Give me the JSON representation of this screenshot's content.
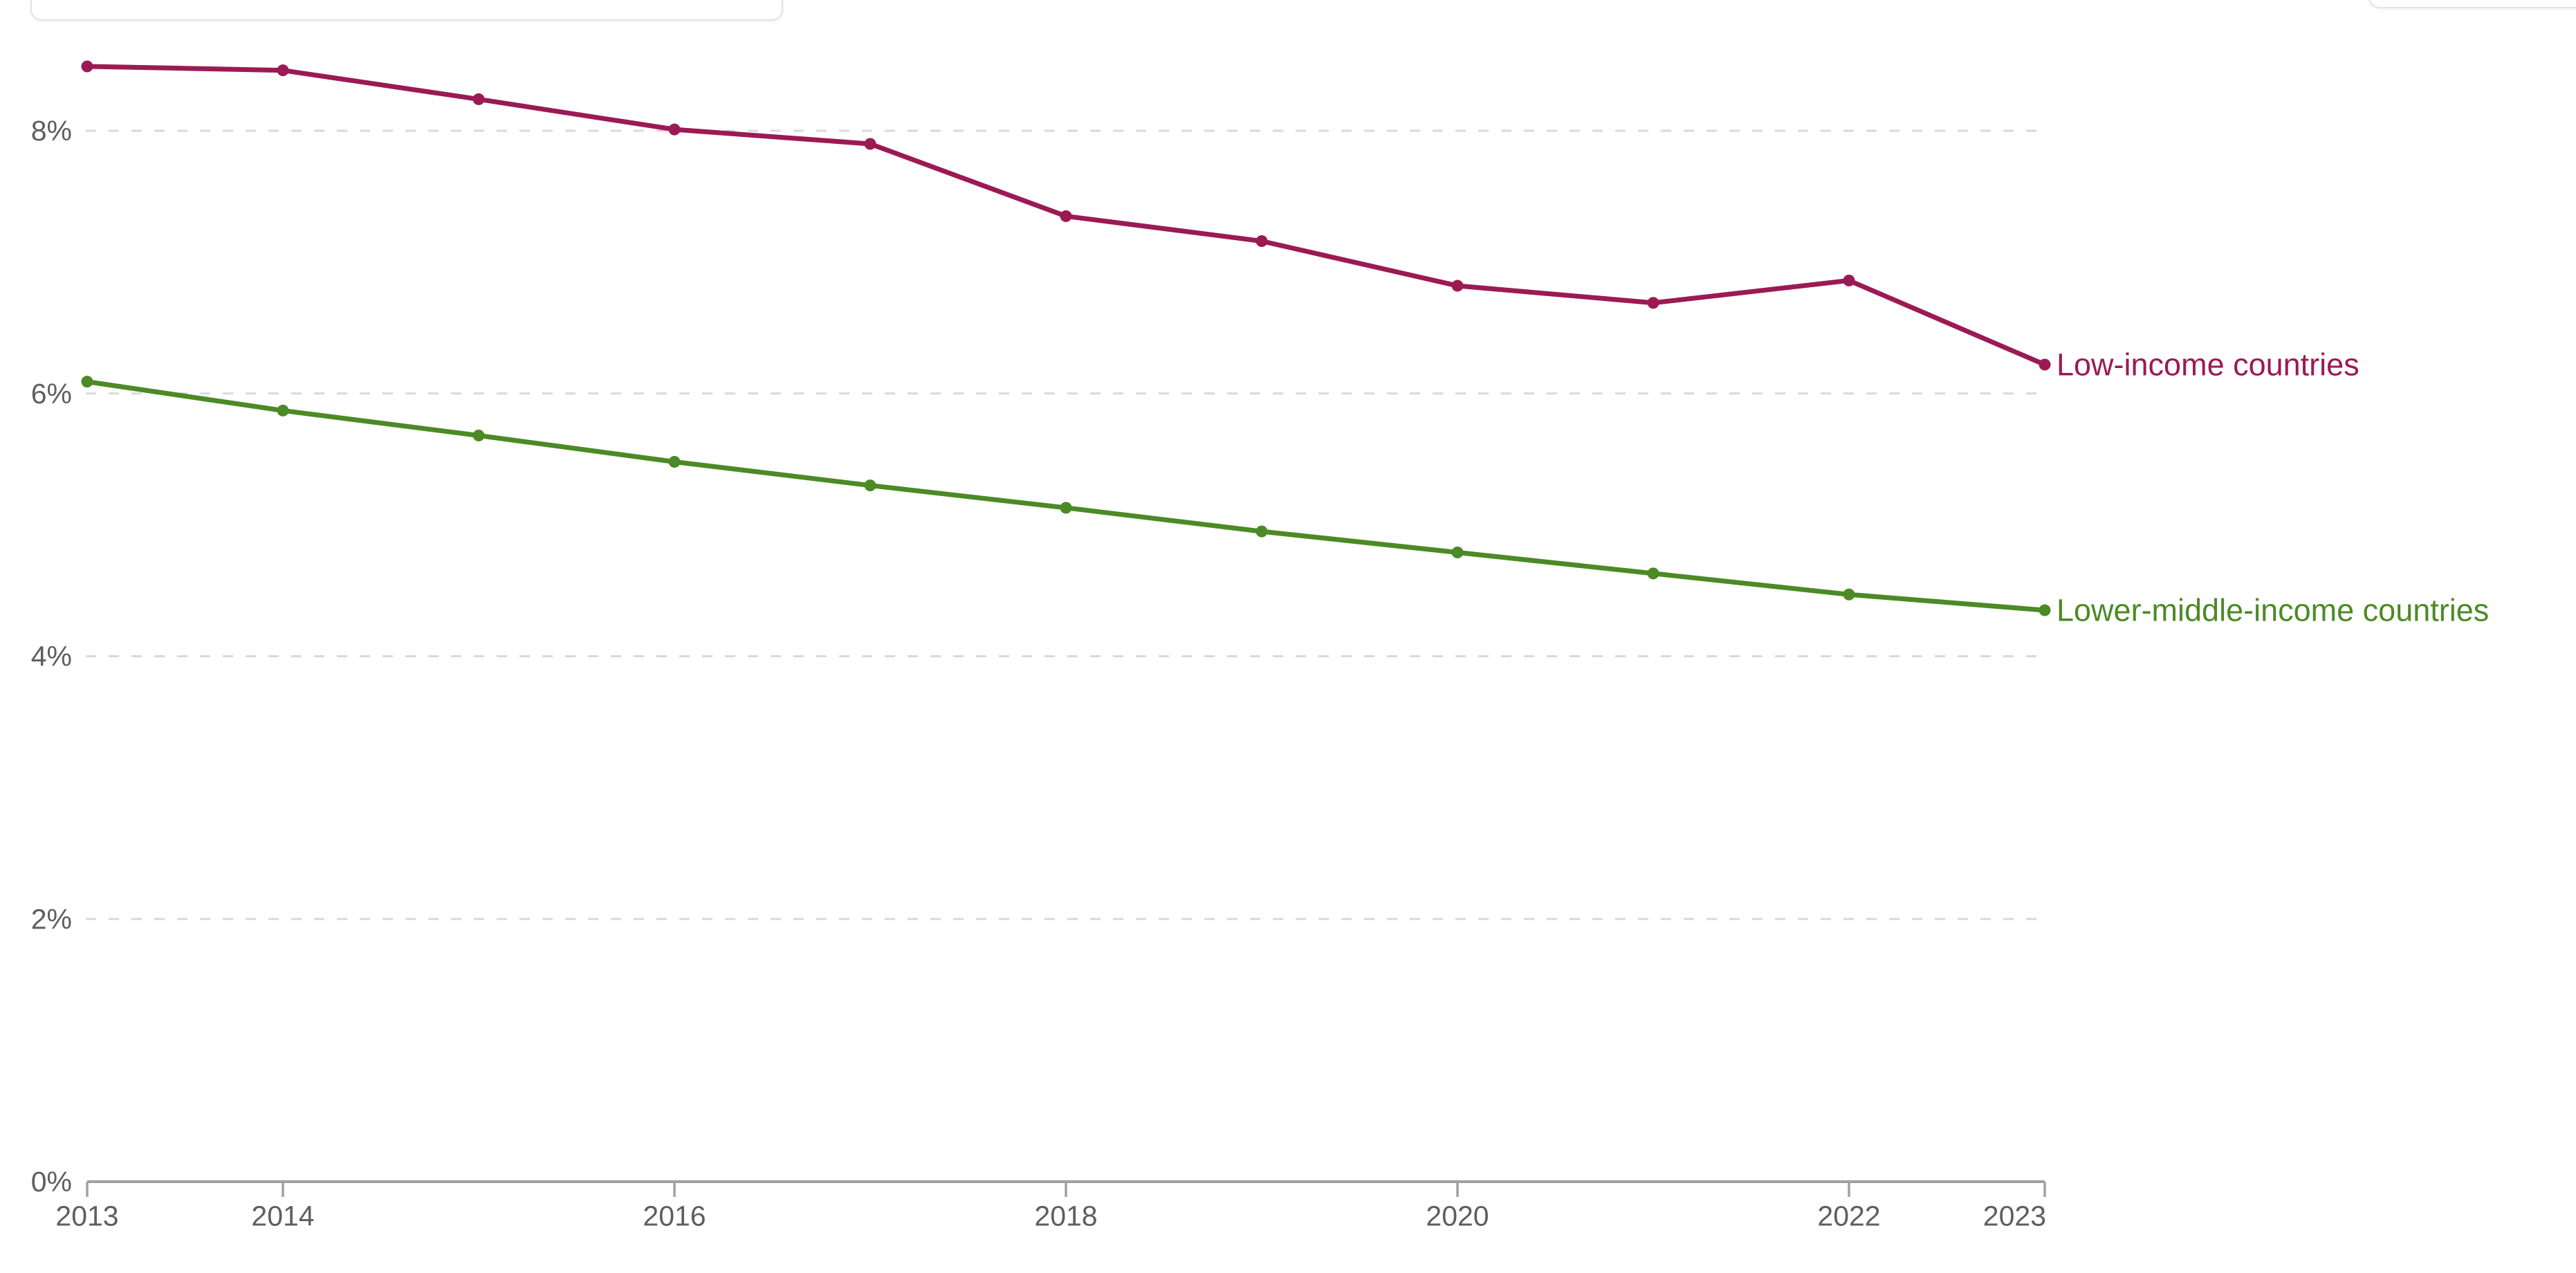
{
  "page": {
    "background": "#ffffff",
    "top_left_panel_text": "",
    "top_right_panel_text": ""
  },
  "colors": {
    "axis": "#a1a1a1",
    "tick": "#a1a1a1",
    "gridline": "#d9d9d9",
    "tick_label": "#5e5e5e"
  },
  "chart_data": {
    "type": "line",
    "x": [
      2013,
      2014,
      2015,
      2016,
      2017,
      2018,
      2019,
      2020,
      2021,
      2022,
      2023
    ],
    "series": [
      {
        "name": "Low-income countries",
        "color": "#9b1a55",
        "values": [
          8.49,
          8.46,
          8.24,
          8.01,
          7.9,
          7.35,
          7.16,
          6.82,
          6.69,
          6.86,
          6.22
        ]
      },
      {
        "name": "Lower-middle-income countries",
        "color": "#4c8a25",
        "values": [
          6.09,
          5.87,
          5.68,
          5.48,
          5.3,
          5.13,
          4.95,
          4.79,
          4.63,
          4.47,
          4.35
        ]
      }
    ],
    "x_tick_labels": [
      "2013",
      "2014",
      "2016",
      "2018",
      "2020",
      "2022",
      "2023"
    ],
    "y_ticks": [
      {
        "value": 0,
        "label": "0%"
      },
      {
        "value": 2,
        "label": "2%"
      },
      {
        "value": 4,
        "label": "4%"
      },
      {
        "value": 6,
        "label": "6%"
      },
      {
        "value": 8,
        "label": "8%"
      }
    ],
    "xlim": [
      2013,
      2023
    ],
    "ylim": [
      0,
      9
    ],
    "grid": "horizontal-dashed",
    "legend_position": "line-end-labels",
    "title": "",
    "xlabel": "",
    "ylabel": ""
  }
}
